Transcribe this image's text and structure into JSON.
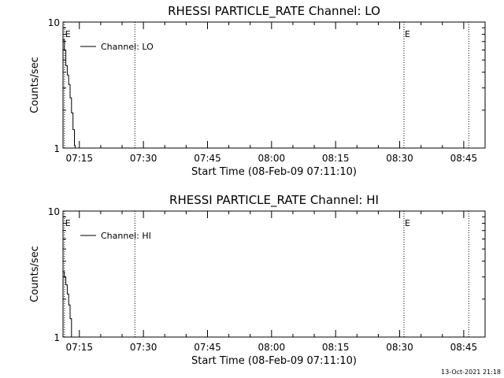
{
  "footer": {
    "timestamp": "13-Oct-2021 21:18"
  },
  "chart_data": [
    {
      "type": "line",
      "title": "RHESSI PARTICLE_RATE Channel: LO",
      "xlabel": "Start Time (08-Feb-09 07:11:10)",
      "ylabel": "Counts/sec",
      "y_scale": "log",
      "ylim": [
        1,
        10
      ],
      "y_ticks": [
        "1",
        "10"
      ],
      "x_range": [
        "07:11:10",
        "08:50:00"
      ],
      "x_ticks": [
        "07:15",
        "07:30",
        "07:45",
        "08:00",
        "08:15",
        "08:30",
        "08:45"
      ],
      "legend": {
        "position": "top-left",
        "label": "Channel: LO"
      },
      "grid": false,
      "markers": [
        {
          "time": "07:11:30",
          "label": "E"
        },
        {
          "time": "07:28:00",
          "label": ""
        },
        {
          "time": "08:31:00",
          "label": "E"
        },
        {
          "time": "08:46:10",
          "label": ""
        }
      ],
      "series": [
        {
          "name": "Channel: LO",
          "points": [
            {
              "x": "07:11:10",
              "y": 7.2
            },
            {
              "x": "07:11:30",
              "y": 6.0
            },
            {
              "x": "07:11:50",
              "y": 4.5
            },
            {
              "x": "07:12:10",
              "y": 3.8
            },
            {
              "x": "07:12:30",
              "y": 3.2
            },
            {
              "x": "07:12:50",
              "y": 2.5
            },
            {
              "x": "07:13:10",
              "y": 1.9
            },
            {
              "x": "07:13:30",
              "y": 1.4
            },
            {
              "x": "07:13:50",
              "y": 1.05
            },
            {
              "x": "07:14:00",
              "y": 1.0
            }
          ]
        }
      ]
    },
    {
      "type": "line",
      "title": "RHESSI PARTICLE_RATE Channel: HI",
      "xlabel": "Start Time (08-Feb-09 07:11:10)",
      "ylabel": "Counts/sec",
      "y_scale": "log",
      "ylim": [
        1,
        10
      ],
      "y_ticks": [
        "1",
        "10"
      ],
      "x_range": [
        "07:11:10",
        "08:50:00"
      ],
      "x_ticks": [
        "07:15",
        "07:30",
        "07:45",
        "08:00",
        "08:15",
        "08:30",
        "08:45"
      ],
      "legend": {
        "position": "top-left",
        "label": "Channel: HI"
      },
      "grid": false,
      "markers": [
        {
          "time": "07:11:30",
          "label": "E"
        },
        {
          "time": "07:28:00",
          "label": ""
        },
        {
          "time": "08:31:00",
          "label": "E"
        },
        {
          "time": "08:46:10",
          "label": ""
        }
      ],
      "series": [
        {
          "name": "Channel: HI",
          "points": [
            {
              "x": "07:11:10",
              "y": 3.3
            },
            {
              "x": "07:11:30",
              "y": 3.0
            },
            {
              "x": "07:11:50",
              "y": 2.6
            },
            {
              "x": "07:12:10",
              "y": 2.2
            },
            {
              "x": "07:12:30",
              "y": 1.8
            },
            {
              "x": "07:12:50",
              "y": 1.4
            },
            {
              "x": "07:13:10",
              "y": 1.0
            }
          ]
        }
      ]
    }
  ]
}
